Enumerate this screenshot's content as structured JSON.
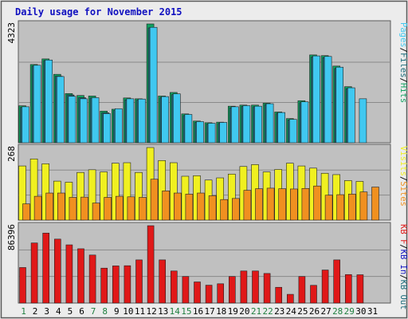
{
  "colors": {
    "bg": "#ececec",
    "border": "#5a5a5a",
    "panel": "#c0c0c0",
    "grid": "#8a8a8a",
    "title": "#1010c0",
    "pages": "#40c8f0",
    "files": "#1a6a7a",
    "hits": "#10a060",
    "visits": "#f0f020",
    "sites": "#f09020",
    "kb": "#e01818",
    "weekend": "#208040",
    "weekday": "#000000"
  },
  "chart_data": {
    "type": "bar",
    "title": "Daily usage for November 2015",
    "categories": [
      "1",
      "2",
      "3",
      "4",
      "5",
      "6",
      "7",
      "8",
      "9",
      "10",
      "11",
      "12",
      "13",
      "14",
      "15",
      "16",
      "17",
      "18",
      "19",
      "20",
      "21",
      "22",
      "23",
      "24",
      "25",
      "26",
      "27",
      "28",
      "29",
      "30",
      "31"
    ],
    "weekend_days": [
      "1",
      "7",
      "8",
      "14",
      "15",
      "21",
      "22",
      "28",
      "29"
    ],
    "panels": [
      {
        "max_label": "4323",
        "ymax": 4323,
        "right_label": [
          {
            "text": "Pages",
            "color_key": "pages"
          },
          {
            "text": "/",
            "color_key": "weekday"
          },
          {
            "text": "Files",
            "color_key": "files"
          },
          {
            "text": "/",
            "color_key": "weekday"
          },
          {
            "text": "Hits",
            "color_key": "hits"
          }
        ],
        "series": [
          {
            "name": "Hits",
            "color_key": "hits",
            "offset": 0,
            "values": [
              1345,
              2847,
              3050,
              2490,
              1790,
              1720,
              1700,
              1150,
              1220,
              1630,
              1600,
              4323,
              1700,
              1830,
              1050,
              790,
              730,
              750,
              1330,
              1370,
              1370,
              1440,
              1120,
              880,
              1530,
              3195,
              3170,
              2790,
              2040,
              0,
              0
            ]
          },
          {
            "name": "Files",
            "color_key": "files",
            "offset": 2,
            "values": [
              1285,
              2790,
              2990,
              2420,
              1740,
              1640,
              1630,
              1090,
              1170,
              1560,
              1550,
              4180,
              1640,
              1750,
              990,
              740,
              680,
              700,
              1270,
              1320,
              1310,
              1390,
              1070,
              830,
              1460,
              3120,
              3100,
              2700,
              1970,
              0,
              0
            ]
          },
          {
            "name": "Pages",
            "color_key": "pages",
            "offset": 4,
            "values": [
              1310,
              2820,
              3010,
              2410,
              1690,
              1600,
              1640,
              1060,
              1240,
              1600,
              1590,
              4200,
              1680,
              1780,
              1030,
              770,
              710,
              740,
              1310,
              1350,
              1330,
              1420,
              1100,
              850,
              1490,
              3160,
              3140,
              2750,
              2000,
              1600,
              0
            ]
          }
        ]
      },
      {
        "max_label": "268",
        "ymax": 268,
        "right_label": [
          {
            "text": "Visits",
            "color_key": "visits"
          },
          {
            "text": "/",
            "color_key": "weekday"
          },
          {
            "text": "Sites",
            "color_key": "sites"
          }
        ],
        "series": [
          {
            "name": "Visits",
            "color_key": "visits",
            "offset": 0,
            "values": [
              200,
              226,
              208,
              144,
              140,
              176,
              186,
              178,
              210,
              212,
              176,
              268,
              220,
              212,
              162,
              164,
              148,
              156,
              170,
              198,
              205,
              178,
              187,
              210,
              200,
              192,
              173,
              168,
              146,
              143,
              0
            ]
          },
          {
            "name": "Sites",
            "color_key": "sites",
            "offset": 5,
            "values": [
              60,
              88,
              100,
              100,
              84,
              85,
              63,
              84,
              88,
              86,
              84,
              151,
              108,
              100,
              96,
              100,
              90,
              76,
              80,
              110,
              116,
              118,
              116,
              115,
              117,
              126,
              92,
              94,
              96,
              104,
              122
            ]
          }
        ]
      },
      {
        "max_label": "86396",
        "ymax": 86396,
        "right_label": [
          {
            "text": "KB F",
            "color_key": "kb"
          },
          {
            "text": "/",
            "color_key": "weekday"
          },
          {
            "text": "KB In",
            "color_key": "title"
          },
          {
            "text": "/",
            "color_key": "weekday"
          },
          {
            "text": "KB Out",
            "color_key": "files"
          }
        ],
        "series": [
          {
            "name": "KB F",
            "color_key": "kb",
            "offset": 0,
            "values": [
              39680,
              67090,
              78150,
              71410,
              65000,
              60630,
              53620,
              39000,
              41480,
              41700,
              48190,
              86396,
              48190,
              35810,
              29650,
              23580,
              19970,
              21540,
              29650,
              35810,
              35810,
              33050,
              17600,
              9740,
              29650,
              19790,
              36890,
              48190,
              31820,
              31610,
              0
            ]
          }
        ]
      }
    ]
  }
}
